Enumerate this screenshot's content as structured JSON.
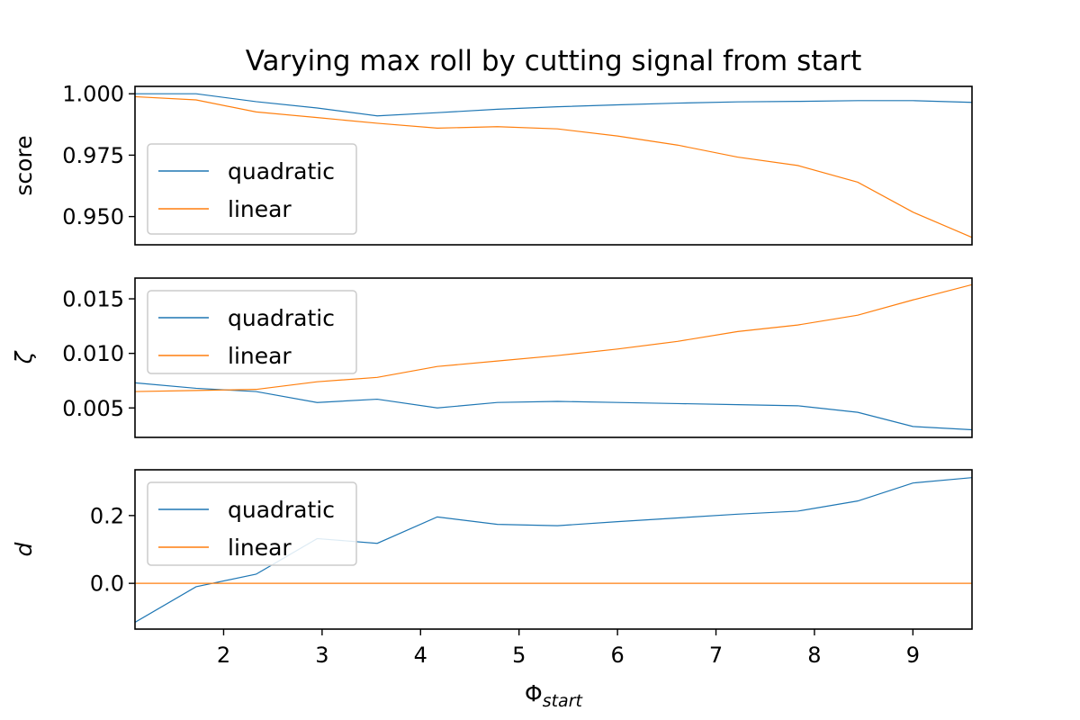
{
  "chart_data": {
    "type": "line",
    "title": "Varying max roll by cutting signal from start",
    "xlabel": "Φ",
    "xlabel_subscript": "start",
    "xlim": [
      1.1,
      9.6
    ],
    "x_ticks": [
      2,
      3,
      4,
      5,
      6,
      7,
      8,
      9
    ],
    "x": [
      1.1,
      1.72,
      2.33,
      2.95,
      3.56,
      4.17,
      4.78,
      5.39,
      6.0,
      6.61,
      7.22,
      7.83,
      8.44,
      9.0,
      9.6
    ],
    "subplots": [
      {
        "ylabel": "score",
        "ylabel_italic": false,
        "ylim": [
          0.9385,
          1.003
        ],
        "y_ticks": [
          0.95,
          0.975,
          1.0
        ],
        "y_tick_labels": [
          "0.950",
          "0.975",
          "1.000"
        ],
        "legend_loc": "lower left",
        "series": [
          {
            "name": "quadratic",
            "color": "#1f77b4",
            "values": [
              1.0,
              1.0,
              0.9968,
              0.9942,
              0.991,
              0.9923,
              0.9937,
              0.9947,
              0.9955,
              0.9962,
              0.9967,
              0.9969,
              0.9972,
              0.9972,
              0.9965
            ]
          },
          {
            "name": "linear",
            "color": "#ff7f0e",
            "values": [
              0.9988,
              0.9975,
              0.9926,
              0.9903,
              0.988,
              0.986,
              0.9866,
              0.9857,
              0.9828,
              0.9791,
              0.9742,
              0.9708,
              0.964,
              0.9518,
              0.9415
            ]
          }
        ]
      },
      {
        "ylabel": "ζ",
        "ylabel_italic": true,
        "ylim": [
          0.0023,
          0.0169
        ],
        "y_ticks": [
          0.005,
          0.01,
          0.015
        ],
        "y_tick_labels": [
          "0.005",
          "0.010",
          "0.015"
        ],
        "legend_loc": "upper left",
        "series": [
          {
            "name": "quadratic",
            "color": "#1f77b4",
            "values": [
              0.0073,
              0.0068,
              0.0065,
              0.0055,
              0.0058,
              0.005,
              0.0055,
              0.0056,
              0.0055,
              0.0054,
              0.0053,
              0.0052,
              0.0046,
              0.0033,
              0.003
            ]
          },
          {
            "name": "linear",
            "color": "#ff7f0e",
            "values": [
              0.0065,
              0.0066,
              0.0067,
              0.0074,
              0.0078,
              0.0088,
              0.0093,
              0.0098,
              0.0104,
              0.0111,
              0.012,
              0.0126,
              0.0135,
              0.0149,
              0.0163
            ]
          }
        ]
      },
      {
        "ylabel": "d",
        "ylabel_italic": true,
        "ylim": [
          -0.135,
          0.335
        ],
        "y_ticks": [
          0.0,
          0.2
        ],
        "y_tick_labels": [
          "0.0",
          "0.2"
        ],
        "legend_loc": "upper left",
        "series": [
          {
            "name": "quadratic",
            "color": "#1f77b4",
            "values": [
              -0.115,
              -0.01,
              0.027,
              0.132,
              0.118,
              0.196,
              0.174,
              0.17,
              0.182,
              0.193,
              0.204,
              0.213,
              0.243,
              0.296,
              0.312
            ]
          },
          {
            "name": "linear",
            "color": "#ff7f0e",
            "values": [
              0,
              0,
              0,
              0,
              0,
              0,
              0,
              0,
              0,
              0,
              0,
              0,
              0,
              0,
              0
            ]
          }
        ]
      }
    ]
  }
}
